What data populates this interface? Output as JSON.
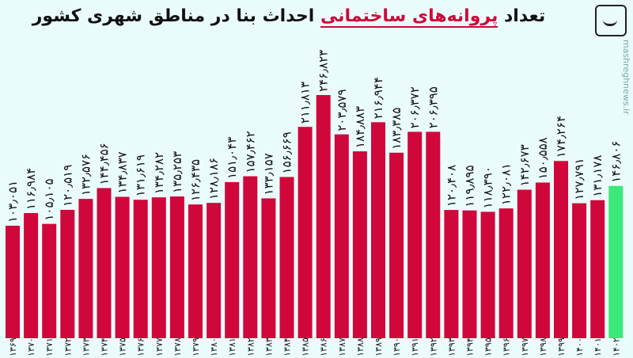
{
  "title": {
    "pre": "تعداد ",
    "highlight": "پروانه‌های ساختمانی",
    "post": " احداث بنا در مناطق شهری کشور"
  },
  "watermark": "mashreghnews.ir",
  "logo_icon": "mashregh-logo-icon",
  "colors": {
    "bar": "#d0073a",
    "highlight_bar": "#3de87a",
    "background": "#eafbfb",
    "title_highlight": "#d0073a"
  },
  "chart_data": {
    "type": "bar",
    "title": "تعداد پروانه‌های ساختمانی احداث بنا در مناطق شهری کشور",
    "categories": [
      "۱۳۶۹",
      "۱۳۷۰",
      "۱۳۷۱",
      "۱۳۷۲",
      "۱۳۷۳",
      "۱۳۷۴",
      "۱۳۷۵",
      "۱۳۷۶",
      "۱۳۷۷",
      "۱۳۷۸",
      "۱۳۷۹",
      "۱۳۸۰",
      "۱۳۸۱",
      "۱۳۸۲",
      "۱۳۸۳",
      "۱۳۸۴",
      "۱۳۸۵",
      "۱۳۸۶",
      "۱۳۸۷",
      "۱۳۸۸",
      "۱۳۸۹",
      "۱۳۹۰",
      "۱۳۹۱",
      "۱۳۹۲",
      "۱۳۹۳",
      "۱۳۹۴",
      "۱۳۹۵",
      "۱۳۹۶",
      "۱۳۹۷",
      "۱۳۹۸",
      "۱۳۹۹",
      "۱۴۰۰",
      "۱۴۰۱",
      "۱۴۰۲"
    ],
    "values": [
      103051,
      116984,
      105105,
      120519,
      132576,
      144456,
      134837,
      131619,
      134282,
      135253,
      126435,
      128186,
      151043,
      157462,
      133157,
      156669,
      211813,
      246823,
      203579,
      184883,
      216944,
      183385,
      206372,
      206395,
      120408,
      119895,
      118390,
      122081,
      142673,
      150558,
      174264,
      127791,
      131178,
      146806
    ],
    "labels": [
      "۱۰۳٫۰۵۱",
      "۱۱۶٫۹۸۴",
      "۱۰۵٫۱۰۵",
      "۱۲۰٫۵۱۹",
      "۱۳۲٫۵۷۶",
      "۱۴۴٫۴۵۶",
      "۱۳۴٫۸۳۷",
      "۱۳۱٫۶۱۹",
      "۱۳۴٫۲۸۲",
      "۱۳۵٫۲۵۳",
      "۱۲۶٫۴۳۵",
      "۱۲۸٫۱۸۶",
      "۱۵۱٫۰۴۳",
      "۱۵۷٫۴۶۲",
      "۱۳۳٫۱۵۷",
      "۱۵۶٫۶۶۹",
      "۲۱۱٫۸۱۳",
      "۲۴۶٫۸۲۳",
      "۲۰۳٫۵۷۹",
      "۱۸۴٫۸۸۳",
      "۲۱۶٫۹۴۴",
      "۱۸۳٫۳۸۵",
      "۲۰۶٫۳۷۲",
      "۲۰۶٫۳۹۵",
      "۱۲۰٫۴۰۸",
      "۱۱۹٫۸۹۵",
      "۱۱۸٫۳۹۰",
      "۱۲۲٫۰۸۱",
      "۱۴۲٫۶۷۳",
      "۱۵۰٫۵۵۸",
      "۱۷۴٫۲۶۴",
      "۱۲۷٫۷۹۱",
      "۱۳۱٫۱۷۸",
      "۱۴۶٫۸۰۶"
    ],
    "highlight_index": 33,
    "grid": false,
    "legend": "none"
  }
}
